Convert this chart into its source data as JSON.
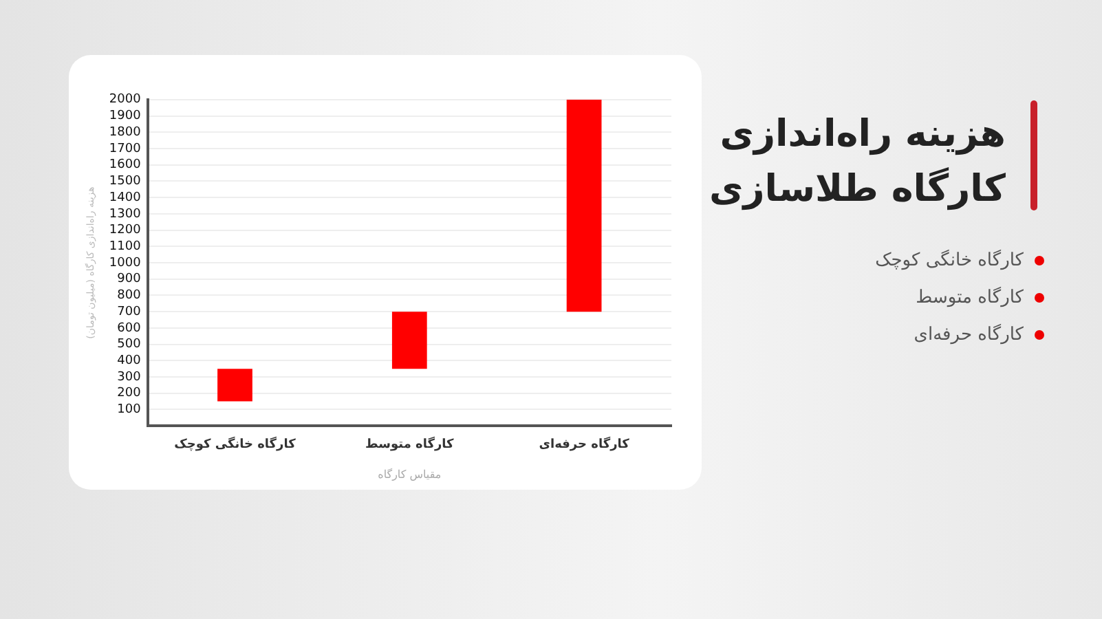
{
  "chart_data": {
    "type": "bar",
    "title": "هزینه راه‌اندازی کارگاه طلاسازی",
    "categories": [
      "کارگاه خانگی کوچک",
      "کارگاه متوسط",
      "کارگاه حرفه‌ای"
    ],
    "base": [
      150,
      350,
      700
    ],
    "values": [
      200,
      350,
      1300
    ],
    "color": "#ff0000",
    "xlabel": "مقیاس کارگاه",
    "ylabel": "هزینه راه‌اندازی کارگاه (میلیون تومان)",
    "ylim": [
      0,
      2000
    ],
    "yticks": [
      100,
      200,
      300,
      400,
      500,
      600,
      700,
      800,
      900,
      1000,
      1100,
      1200,
      1300,
      1400,
      1500,
      1600,
      1700,
      1800,
      1900,
      2000
    ],
    "grid": "y",
    "annotations": [
      "کارگاه خانگی کوچک",
      "کارگاه متوسط",
      "کارگاه حرفه‌ای"
    ]
  }
}
